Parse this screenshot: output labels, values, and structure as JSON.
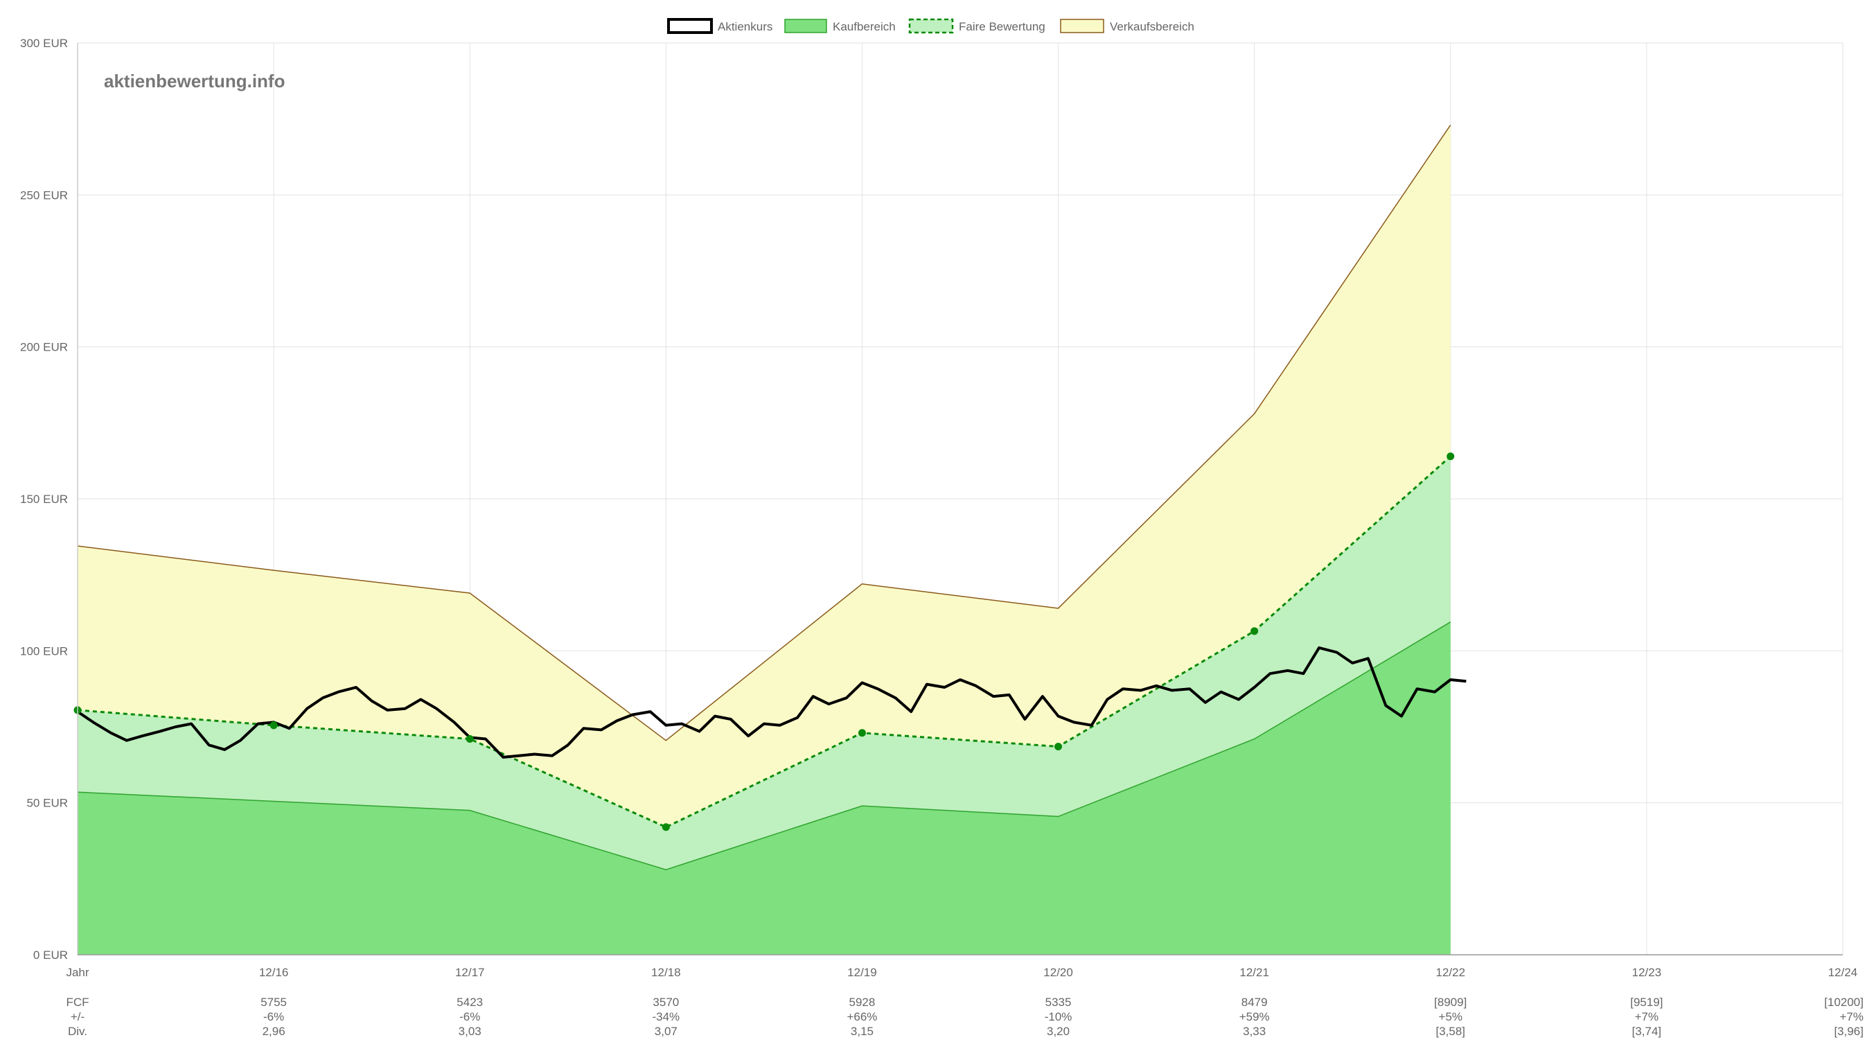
{
  "watermark": "aktienbewertung.info",
  "colors": {
    "price_line": "#000000",
    "buy_fill": "#7ee07e",
    "buy_line": "#2fa32f",
    "fair_fill": "#bff0bf",
    "fair_line": "#0a8a0a",
    "sell_fill": "#fafac8",
    "sell_line": "#8a5a1a",
    "grid": "#e2e2e2"
  },
  "legend": [
    {
      "label": "Aktienkurs",
      "style": "price"
    },
    {
      "label": "Kaufbereich",
      "style": "buy"
    },
    {
      "label": "Faire Bewertung",
      "style": "fair"
    },
    {
      "label": "Verkaufsbereich",
      "style": "sell"
    }
  ],
  "chart_data": {
    "type": "area",
    "title": "",
    "ylabel": "",
    "xlabel": "",
    "ylim": [
      0,
      300
    ],
    "y_unit": "EUR",
    "y_ticks": [
      0,
      50,
      100,
      150,
      200,
      250,
      300
    ],
    "y_tick_labels": [
      "0 EUR",
      "50 EUR",
      "100 EUR",
      "150 EUR",
      "200 EUR",
      "250 EUR",
      "300 EUR"
    ],
    "x_labels": [
      "Jahr",
      "12/16",
      "12/17",
      "12/18",
      "12/19",
      "12/20",
      "12/21",
      "12/22",
      "12/23",
      "12/24"
    ],
    "grid": true,
    "legend_position": "top-center",
    "series": [
      {
        "name": "Kaufbereich",
        "style": "buy",
        "x": [
          0,
          1,
          2,
          3,
          4,
          5,
          6,
          7
        ],
        "values": [
          53.5,
          50.5,
          47.5,
          28,
          49,
          45.5,
          71,
          109.5
        ]
      },
      {
        "name": "Faire Bewertung",
        "style": "fair",
        "x": [
          0,
          1,
          2,
          3,
          4,
          5,
          6,
          7
        ],
        "values": [
          80.5,
          75.5,
          71,
          42,
          73,
          68.5,
          106.5,
          164
        ]
      },
      {
        "name": "Verkaufsbereich",
        "style": "sell",
        "x": [
          0,
          1,
          2,
          3,
          4,
          5,
          6,
          7
        ],
        "values": [
          134.5,
          126.5,
          119,
          70.5,
          122,
          114,
          178,
          273
        ]
      },
      {
        "name": "Aktienkurs",
        "style": "price",
        "x": [
          0,
          0.08,
          0.17,
          0.25,
          0.33,
          0.42,
          0.5,
          0.58,
          0.67,
          0.75,
          0.83,
          0.92,
          1.0,
          1.08,
          1.17,
          1.25,
          1.33,
          1.42,
          1.5,
          1.58,
          1.67,
          1.75,
          1.83,
          1.92,
          2.0,
          2.08,
          2.17,
          2.25,
          2.33,
          2.42,
          2.5,
          2.58,
          2.67,
          2.75,
          2.83,
          2.92,
          3.0,
          3.08,
          3.17,
          3.25,
          3.33,
          3.42,
          3.5,
          3.58,
          3.67,
          3.75,
          3.83,
          3.92,
          4.0,
          4.08,
          4.17,
          4.25,
          4.33,
          4.42,
          4.5,
          4.58,
          4.67,
          4.75,
          4.83,
          4.92,
          5.0,
          5.08,
          5.17,
          5.25,
          5.33,
          5.42,
          5.5,
          5.58,
          5.67,
          5.75,
          5.83,
          5.92,
          6.0,
          6.08,
          6.17,
          6.25,
          6.33,
          6.42,
          6.5,
          6.58,
          6.67,
          6.75,
          6.83,
          6.92,
          7.0,
          7.08
        ],
        "values": [
          80,
          76.5,
          73,
          70.5,
          72,
          73.5,
          75,
          76,
          69,
          67.5,
          70.5,
          76,
          76.5,
          74.5,
          81,
          84.5,
          86.5,
          88,
          83.5,
          80.5,
          81,
          84,
          81,
          76.5,
          71.5,
          71,
          65,
          65.5,
          66,
          65.5,
          69,
          74.5,
          74,
          77,
          79,
          80,
          75.5,
          76,
          73.5,
          78.5,
          77.5,
          72,
          76,
          75.5,
          78,
          85,
          82.5,
          84.5,
          89.5,
          87.5,
          84.5,
          80,
          89,
          88,
          90.5,
          88.5,
          85,
          85.5,
          77.5,
          85,
          78.5,
          76.5,
          75.5,
          84,
          87.5,
          87,
          88.5,
          87,
          87.5,
          83,
          86.5,
          84,
          88,
          92.5,
          93.5,
          92.5,
          101,
          99.5,
          96,
          97.5,
          82,
          78.5,
          87.5,
          86.5,
          90.5,
          90
        ]
      }
    ]
  },
  "table": {
    "rows": [
      {
        "label": "FCF",
        "values": [
          "5755",
          "5423",
          "3570",
          "5928",
          "5335",
          "8479",
          "[8909]",
          "[9519]",
          "[10200]"
        ]
      },
      {
        "label": "+/-",
        "values": [
          "-6%",
          "-6%",
          "-34%",
          "+66%",
          "-10%",
          "+59%",
          "+5%",
          "+7%",
          "+7%"
        ]
      },
      {
        "label": "Div.",
        "values": [
          "2,96",
          "3,03",
          "3,07",
          "3,15",
          "3,20",
          "3,33",
          "[3,58]",
          "[3,74]",
          "[3,96]"
        ]
      }
    ]
  }
}
